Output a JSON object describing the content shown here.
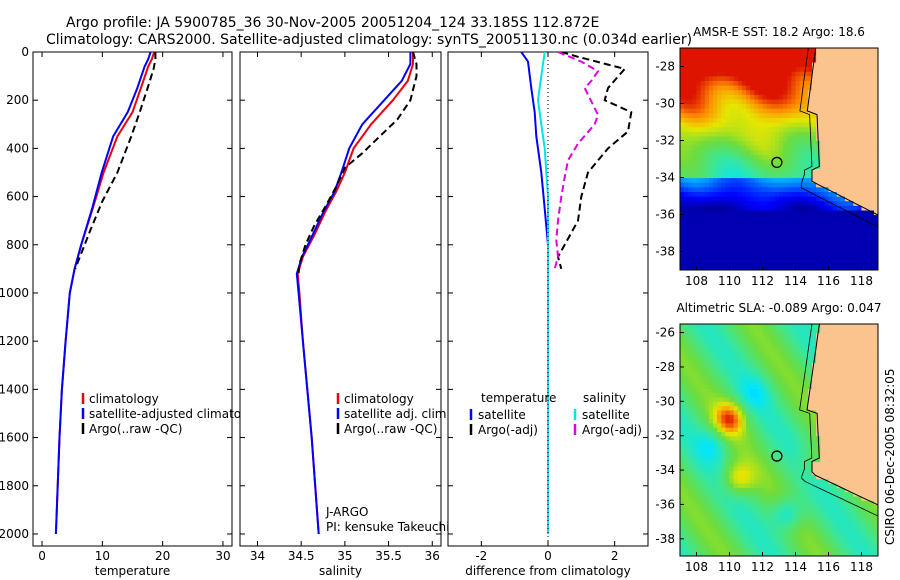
{
  "header": {
    "line1": "Argo profile: JA 5900785_36 30-Nov-2005 20051204_124 33.185S 112.872E",
    "line2": "Climatology: CARS2000. Satellite-adjusted climatology: synTS_20051130.nc (0.034d earlier)"
  },
  "side_stamp": "CSIRO 06-Dec-2005 08:32:05",
  "colors": {
    "climatology": "#e8000f",
    "satellite": "#0000ff",
    "argo": "#000000",
    "salinity_satellite": "#00e5e5",
    "salinity_argo": "#e000e0",
    "land": "#fbc48f"
  },
  "chart_data": [
    {
      "id": "temperature",
      "type": "line",
      "xlabel": "temperature",
      "ylabel": "",
      "xlim": [
        -1.5,
        31.5
      ],
      "ylim": [
        2050,
        0
      ],
      "xticks": [
        0,
        10,
        20,
        30
      ],
      "yticks": [
        0,
        200,
        400,
        600,
        800,
        1000,
        1200,
        1400,
        1600,
        1800,
        2000
      ],
      "legend": [
        "climatology",
        "satellite-adjusted climatology",
        "Argo(..raw -QC)"
      ],
      "series": [
        {
          "name": "climatology",
          "style": "solid",
          "points": [
            [
              18.6,
              0
            ],
            [
              18.2,
              30
            ],
            [
              17.6,
              60
            ],
            [
              16.4,
              150
            ],
            [
              15.0,
              250
            ],
            [
              12.5,
              350
            ],
            [
              10.2,
              500
            ],
            [
              8.4,
              650
            ],
            [
              6.5,
              800
            ],
            [
              5.4,
              900
            ],
            [
              4.6,
              1000
            ],
            [
              3.9,
              1200
            ],
            [
              3.3,
              1400
            ],
            [
              2.9,
              1600
            ],
            [
              2.6,
              1800
            ],
            [
              2.3,
              2000
            ]
          ]
        },
        {
          "name": "satellite-adjusted climatology",
          "style": "solid",
          "points": [
            [
              18.0,
              0
            ],
            [
              17.6,
              30
            ],
            [
              17.0,
              60
            ],
            [
              15.8,
              150
            ],
            [
              14.2,
              250
            ],
            [
              11.8,
              350
            ],
            [
              9.9,
              500
            ],
            [
              8.3,
              650
            ],
            [
              6.5,
              800
            ],
            [
              5.4,
              900
            ],
            [
              4.6,
              1000
            ],
            [
              3.9,
              1200
            ],
            [
              3.3,
              1400
            ],
            [
              2.9,
              1600
            ],
            [
              2.6,
              1800
            ],
            [
              2.3,
              2000
            ]
          ]
        },
        {
          "name": "Argo(..raw -QC)",
          "style": "dashed",
          "points": [
            [
              18.8,
              0
            ],
            [
              18.8,
              30
            ],
            [
              18.5,
              70
            ],
            [
              17.5,
              150
            ],
            [
              16.2,
              250
            ],
            [
              14.8,
              350
            ],
            [
              12.5,
              500
            ],
            [
              10.0,
              620
            ],
            [
              8.0,
              740
            ],
            [
              6.6,
              830
            ],
            [
              5.5,
              900
            ]
          ]
        }
      ]
    },
    {
      "id": "salinity",
      "type": "line",
      "xlabel": "salinity",
      "ylabel": "",
      "xlim": [
        33.8,
        36.1
      ],
      "ylim": [
        2050,
        0
      ],
      "xticks": [
        34,
        34.5,
        35,
        35.5,
        36
      ],
      "yticks": [],
      "legend": [
        "climatology",
        "satellite adj. clim.",
        "Argo(..raw -QC)"
      ],
      "annotations": [
        "J-ARGO",
        "PI: kensuke Takeuchi"
      ],
      "series": [
        {
          "name": "climatology",
          "style": "solid",
          "points": [
            [
              35.78,
              0
            ],
            [
              35.78,
              50
            ],
            [
              35.72,
              120
            ],
            [
              35.55,
              200
            ],
            [
              35.3,
              300
            ],
            [
              35.1,
              400
            ],
            [
              35.0,
              500
            ],
            [
              34.9,
              580
            ],
            [
              34.78,
              660
            ],
            [
              34.65,
              760
            ],
            [
              34.52,
              850
            ],
            [
              34.46,
              920
            ],
            [
              34.48,
              1000
            ],
            [
              34.52,
              1200
            ],
            [
              34.57,
              1400
            ],
            [
              34.62,
              1600
            ],
            [
              34.66,
              1800
            ],
            [
              34.7,
              2000
            ]
          ]
        },
        {
          "name": "satellite adj. clim.",
          "style": "solid",
          "points": [
            [
              35.75,
              0
            ],
            [
              35.75,
              50
            ],
            [
              35.65,
              120
            ],
            [
              35.45,
              200
            ],
            [
              35.2,
              300
            ],
            [
              35.05,
              400
            ],
            [
              34.96,
              500
            ],
            [
              34.88,
              580
            ],
            [
              34.76,
              660
            ],
            [
              34.63,
              760
            ],
            [
              34.51,
              850
            ],
            [
              34.45,
              920
            ],
            [
              34.47,
              1000
            ],
            [
              34.52,
              1200
            ],
            [
              34.57,
              1400
            ],
            [
              34.62,
              1600
            ],
            [
              34.66,
              1800
            ],
            [
              34.7,
              2000
            ]
          ]
        },
        {
          "name": "Argo(..raw -QC)",
          "style": "dashed",
          "points": [
            [
              35.78,
              0
            ],
            [
              35.82,
              50
            ],
            [
              35.82,
              100
            ],
            [
              35.75,
              200
            ],
            [
              35.6,
              280
            ],
            [
              35.4,
              350
            ],
            [
              35.2,
              420
            ],
            [
              35.0,
              480
            ],
            [
              34.9,
              560
            ],
            [
              34.78,
              640
            ],
            [
              34.65,
              720
            ],
            [
              34.55,
              800
            ],
            [
              34.48,
              880
            ],
            [
              34.47,
              920
            ]
          ]
        }
      ]
    },
    {
      "id": "difference",
      "type": "line",
      "xlabel": "difference from climatology",
      "ylabel": "",
      "xlim": [
        -3.0,
        3.0
      ],
      "ylim": [
        2050,
        0
      ],
      "xticks": [
        -2,
        0,
        2
      ],
      "yticks": [],
      "legend_left_title": "temperature",
      "legend_right_title": "salinity",
      "legend": [
        "satellite",
        "Argo(-adj)",
        "satellite",
        "Argo(-adj)"
      ],
      "series": [
        {
          "name": "temperature satellite",
          "style": "solid",
          "points": [
            [
              -0.8,
              0
            ],
            [
              -0.6,
              40
            ],
            [
              -0.5,
              150
            ],
            [
              -0.4,
              250
            ],
            [
              -0.35,
              350
            ],
            [
              -0.2,
              500
            ],
            [
              -0.1,
              650
            ],
            [
              0.0,
              800
            ],
            [
              0.0,
              1000
            ],
            [
              0.0,
              2000
            ]
          ]
        },
        {
          "name": "temperature Argo(-adj)",
          "style": "dashed",
          "points": [
            [
              0.4,
              0
            ],
            [
              0.9,
              20
            ],
            [
              2.3,
              70
            ],
            [
              1.8,
              150
            ],
            [
              1.7,
              200
            ],
            [
              2.5,
              250
            ],
            [
              2.4,
              330
            ],
            [
              1.8,
              400
            ],
            [
              1.2,
              500
            ],
            [
              1.0,
              600
            ],
            [
              0.9,
              700
            ],
            [
              0.5,
              800
            ],
            [
              0.3,
              850
            ],
            [
              0.4,
              900
            ]
          ]
        },
        {
          "name": "salinity satellite",
          "style": "solid",
          "points": [
            [
              -0.1,
              0
            ],
            [
              -0.2,
              100
            ],
            [
              -0.3,
              200
            ],
            [
              -0.2,
              300
            ],
            [
              -0.1,
              400
            ],
            [
              0.0,
              600
            ],
            [
              0.0,
              800
            ],
            [
              0.0,
              1000
            ],
            [
              0.0,
              2000
            ]
          ]
        },
        {
          "name": "salinity Argo(-adj)",
          "style": "dashed",
          "points": [
            [
              0.3,
              0
            ],
            [
              1.0,
              40
            ],
            [
              1.5,
              80
            ],
            [
              1.3,
              120
            ],
            [
              1.1,
              150
            ],
            [
              1.5,
              260
            ],
            [
              1.4,
              300
            ],
            [
              0.9,
              380
            ],
            [
              0.6,
              450
            ],
            [
              0.5,
              520
            ],
            [
              0.4,
              600
            ],
            [
              0.3,
              700
            ],
            [
              0.25,
              780
            ],
            [
              0.3,
              850
            ],
            [
              0.2,
              900
            ]
          ]
        }
      ]
    },
    {
      "id": "sst-map",
      "type": "heatmap",
      "title": "AMSR-E SST: 18.2 Argo: 18.6",
      "xlim": [
        107,
        119
      ],
      "ylim": [
        -39,
        -27
      ],
      "xticks": [
        108,
        110,
        112,
        114,
        116,
        118
      ],
      "yticks": [
        -28,
        -30,
        -32,
        -34,
        -36,
        -38
      ],
      "profile_location": [
        112.872,
        -33.185
      ]
    },
    {
      "id": "sla-map",
      "type": "heatmap",
      "title": "Altimetric SLA: -0.089 Argo: 0.047",
      "xlim": [
        107,
        119
      ],
      "ylim": [
        -39,
        -25.5
      ],
      "xticks": [
        108,
        110,
        112,
        114,
        116,
        118
      ],
      "yticks": [
        -26,
        -28,
        -30,
        -32,
        -34,
        -36,
        -38
      ],
      "profile_location": [
        112.872,
        -33.185
      ]
    }
  ]
}
